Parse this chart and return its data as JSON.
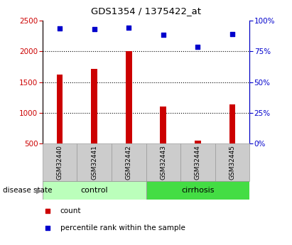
{
  "title": "GDS1354 / 1375422_at",
  "categories": [
    "GSM32440",
    "GSM32441",
    "GSM32442",
    "GSM32443",
    "GSM32444",
    "GSM32445"
  ],
  "bar_values": [
    1620,
    1710,
    2000,
    1100,
    540,
    1140
  ],
  "scatter_values": [
    2380,
    2370,
    2390,
    2270,
    2080,
    2280
  ],
  "ylim_left": [
    500,
    2500
  ],
  "ylim_right": [
    0,
    100
  ],
  "yticks_left": [
    500,
    1000,
    1500,
    2000,
    2500
  ],
  "yticks_right": [
    0,
    25,
    50,
    75,
    100
  ],
  "bar_color": "#cc0000",
  "scatter_color": "#0000cc",
  "bar_width": 0.18,
  "groups": [
    {
      "label": "control",
      "indices": [
        0,
        1,
        2
      ],
      "color": "#bbffbb"
    },
    {
      "label": "cirrhosis",
      "indices": [
        3,
        4,
        5
      ],
      "color": "#44dd44"
    }
  ],
  "background_color": "#ffffff",
  "dotted_grid_values": [
    1000,
    1500,
    2000
  ],
  "tick_box_color": "#cccccc",
  "tick_box_edge_color": "#999999"
}
